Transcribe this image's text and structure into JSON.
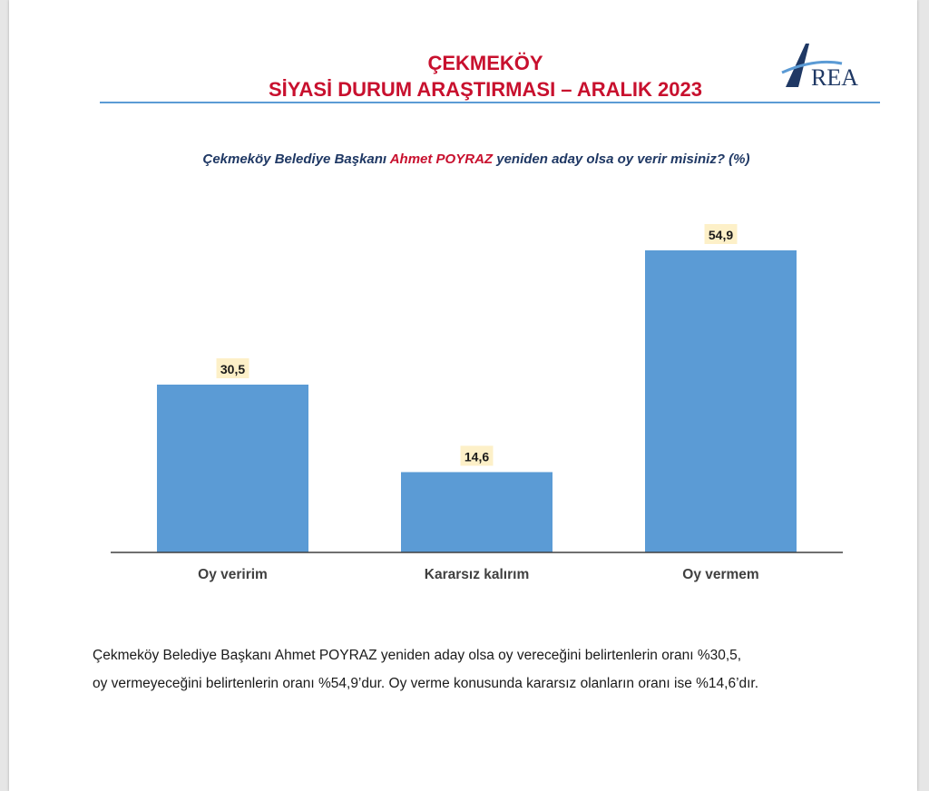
{
  "header": {
    "title_line1": "ÇEKMEKÖY",
    "title_line2": "SİYASİ DURUM ARAŞTIRMASI – ARALIK 2023",
    "logo_text": "REA",
    "logo_letter": "A"
  },
  "question": {
    "part1": "Çekmeköy Belediye Başkanı ",
    "highlight": "Ahmet POYRAZ",
    "part2": " yeniden aday olsa oy verir misiniz? (%)"
  },
  "chart_data": {
    "type": "bar",
    "categories": [
      "Oy veririm",
      "Kararsız kalırım",
      "Oy vermem"
    ],
    "values": [
      30.5,
      14.6,
      54.9
    ],
    "value_labels": [
      "30,5",
      "14,6",
      "54,9"
    ],
    "ylim": [
      0,
      60
    ],
    "grid": false,
    "bar_color": "#5b9bd5",
    "label_bg": "#fdf0c8"
  },
  "summary": {
    "line1": "Çekmeköy Belediye Başkanı Ahmet POYRAZ yeniden aday olsa oy vereceğini belirtenlerin oranı %30,5,",
    "line2": "oy vermeyeceğini belirtenlerin oranı %54,9’dur. Oy verme konusunda kararsız olanların oranı ise %14,6’dır."
  }
}
